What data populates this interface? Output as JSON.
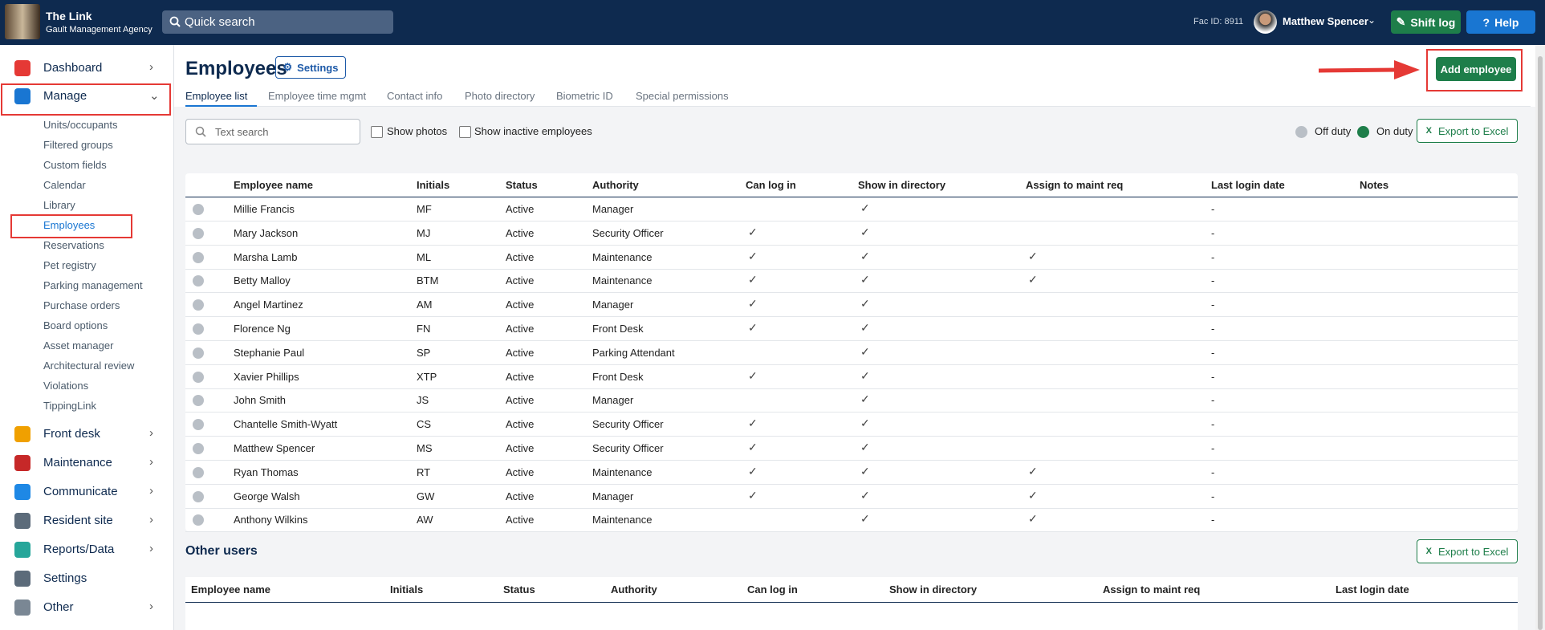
{
  "header": {
    "app_name": "The Link",
    "agency": "Gault Management Agency",
    "search": "Quick search",
    "fac_id": "Fac ID: 8911",
    "user": "Matthew Spencer",
    "shift_log": "Shift log",
    "help": "Help"
  },
  "sidebar": {
    "top": [
      {
        "label": "Dashboard"
      },
      {
        "label": "Manage"
      }
    ],
    "manage_items": [
      "Units/occupants",
      "Filtered groups",
      "Custom fields",
      "Calendar",
      "Library",
      "Employees",
      "Reservations",
      "Pet registry",
      "Parking management",
      "Purchase orders",
      "Board options",
      "Asset manager",
      "Architectural review",
      "Violations",
      "TippingLink"
    ],
    "bottom": [
      {
        "label": "Front desk"
      },
      {
        "label": "Maintenance"
      },
      {
        "label": "Communicate"
      },
      {
        "label": "Resident site"
      },
      {
        "label": "Reports/Data"
      },
      {
        "label": "Settings"
      },
      {
        "label": "Other"
      }
    ]
  },
  "main": {
    "title": "Employees",
    "settings": "Settings",
    "add_employee": "Add employee",
    "tabs": [
      "Employee list",
      "Employee time mgmt",
      "Contact info",
      "Photo directory",
      "Biometric ID",
      "Special permissions"
    ],
    "text_search": "Text search",
    "show_photos": "Show photos",
    "show_inactive": "Show inactive employees",
    "off_duty": "Off duty",
    "on_duty": "On duty",
    "export": "Export to Excel",
    "table": {
      "columns": [
        "Employee name",
        "Initials",
        "Status",
        "Authority",
        "Can log in",
        "Show in directory",
        "Assign to maint req",
        "Last login date",
        "Notes"
      ],
      "rows": [
        {
          "name": "Millie Francis",
          "initials": "MF",
          "status": "Active",
          "authority": "Manager",
          "can_log_in": false,
          "show_in_directory": true,
          "assign_to_maint_req": false,
          "last_login": "-"
        },
        {
          "name": "Mary Jackson",
          "initials": "MJ",
          "status": "Active",
          "authority": "Security Officer",
          "can_log_in": true,
          "show_in_directory": true,
          "assign_to_maint_req": false,
          "last_login": "-"
        },
        {
          "name": "Marsha Lamb",
          "initials": "ML",
          "status": "Active",
          "authority": "Maintenance",
          "can_log_in": true,
          "show_in_directory": true,
          "assign_to_maint_req": true,
          "last_login": "-"
        },
        {
          "name": "Betty Malloy",
          "initials": "BTM",
          "status": "Active",
          "authority": "Maintenance",
          "can_log_in": true,
          "show_in_directory": true,
          "assign_to_maint_req": true,
          "last_login": "-"
        },
        {
          "name": "Angel Martinez",
          "initials": "AM",
          "status": "Active",
          "authority": "Manager",
          "can_log_in": true,
          "show_in_directory": true,
          "assign_to_maint_req": false,
          "last_login": "-"
        },
        {
          "name": "Florence Ng",
          "initials": "FN",
          "status": "Active",
          "authority": "Front Desk",
          "can_log_in": true,
          "show_in_directory": true,
          "assign_to_maint_req": false,
          "last_login": "-"
        },
        {
          "name": "Stephanie Paul",
          "initials": "SP",
          "status": "Active",
          "authority": "Parking Attendant",
          "can_log_in": false,
          "show_in_directory": true,
          "assign_to_maint_req": false,
          "last_login": "-"
        },
        {
          "name": "Xavier Phillips",
          "initials": "XTP",
          "status": "Active",
          "authority": "Front Desk",
          "can_log_in": true,
          "show_in_directory": true,
          "assign_to_maint_req": false,
          "last_login": "-"
        },
        {
          "name": "John Smith",
          "initials": "JS",
          "status": "Active",
          "authority": "Manager",
          "can_log_in": false,
          "show_in_directory": true,
          "assign_to_maint_req": false,
          "last_login": "-"
        },
        {
          "name": "Chantelle Smith-Wyatt",
          "initials": "CS",
          "status": "Active",
          "authority": "Security Officer",
          "can_log_in": true,
          "show_in_directory": true,
          "assign_to_maint_req": false,
          "last_login": "-"
        },
        {
          "name": "Matthew Spencer",
          "initials": "MS",
          "status": "Active",
          "authority": "Security Officer",
          "can_log_in": true,
          "show_in_directory": true,
          "assign_to_maint_req": false,
          "last_login": "-"
        },
        {
          "name": "Ryan Thomas",
          "initials": "RT",
          "status": "Active",
          "authority": "Maintenance",
          "can_log_in": true,
          "show_in_directory": true,
          "assign_to_maint_req": true,
          "last_login": "-"
        },
        {
          "name": "George Walsh",
          "initials": "GW",
          "status": "Active",
          "authority": "Manager",
          "can_log_in": true,
          "show_in_directory": true,
          "assign_to_maint_req": true,
          "last_login": "-"
        },
        {
          "name": "Anthony Wilkins",
          "initials": "AW",
          "status": "Active",
          "authority": "Maintenance",
          "can_log_in": false,
          "show_in_directory": true,
          "assign_to_maint_req": true,
          "last_login": "-"
        }
      ]
    },
    "other_users": {
      "title": "Other users",
      "export": "Export to Excel",
      "columns": [
        "Employee name",
        "Initials",
        "Status",
        "Authority",
        "Can log in",
        "Show in directory",
        "Assign to maint req",
        "Last login date"
      ]
    }
  }
}
